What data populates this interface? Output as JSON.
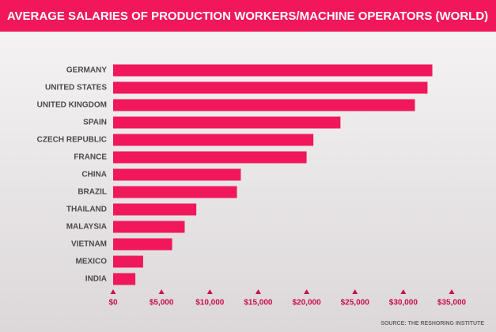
{
  "chart_data": {
    "type": "bar",
    "orientation": "horizontal",
    "title": "AVERAGE SALARIES OF PRODUCTION WORKERS/MACHINE OPERATORS (WORLD)",
    "source": "SOURCE: THE RESHORING INSTITUTE",
    "categories": [
      "GERMANY",
      "UNITED STATES",
      "UNITED KINGDOM",
      "SPAIN",
      "CZECH REPUBLIC",
      "FRANCE",
      "CHINA",
      "BRAZIL",
      "THAILAND",
      "MALAYSIA",
      "VIETNAM",
      "MEXICO",
      "INDIA"
    ],
    "values": [
      33000,
      32500,
      31200,
      23500,
      20700,
      20000,
      13200,
      12800,
      8600,
      7400,
      6100,
      3100,
      2300
    ],
    "color": "#f0185a",
    "xlim": [
      0,
      35000
    ],
    "xticks": [
      {
        "value": 0,
        "label": "$0"
      },
      {
        "value": 5000,
        "label": "$5,000"
      },
      {
        "value": 10000,
        "label": "$10,000"
      },
      {
        "value": 15000,
        "label": "$15,000"
      },
      {
        "value": 20000,
        "label": "$20,000"
      },
      {
        "value": 25000,
        "label": "$25,000"
      },
      {
        "value": 30000,
        "label": "$30,000"
      },
      {
        "value": 35000,
        "label": "$35,000"
      }
    ]
  }
}
